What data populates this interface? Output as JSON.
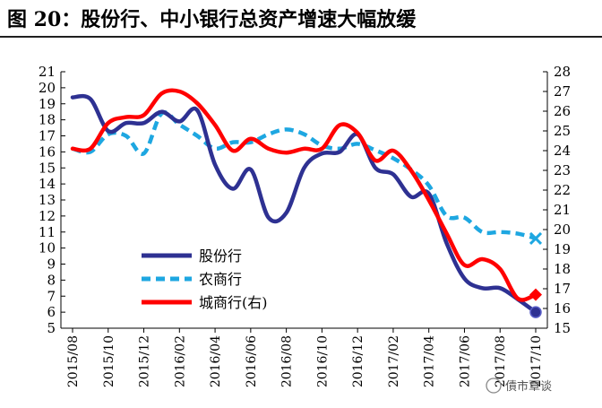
{
  "header": {
    "title": "图 20：股份行、中小银行总资产增速大幅放缓"
  },
  "watermark": "債市覃谈",
  "chart_data": {
    "type": "line",
    "title": "图 20：股份行、中小银行总资产增速大幅放缓",
    "x": [
      "2015/08",
      "2015/09",
      "2015/10",
      "2015/11",
      "2015/12",
      "2016/01",
      "2016/02",
      "2016/03",
      "2016/04",
      "2016/05",
      "2016/06",
      "2016/07",
      "2016/08",
      "2016/09",
      "2016/10",
      "2016/11",
      "2016/12",
      "2017/01",
      "2017/02",
      "2017/03",
      "2017/04",
      "2017/05",
      "2017/06",
      "2017/07",
      "2017/08",
      "2017/09",
      "2017/10"
    ],
    "xticks": [
      "2015/08",
      "2015/10",
      "2015/12",
      "2016/02",
      "2016/04",
      "2016/06",
      "2016/08",
      "2016/10",
      "2016/12",
      "2017/02",
      "2017/04",
      "2017/06",
      "2017/08",
      "2017/10"
    ],
    "y_left": {
      "ylim": [
        5,
        21
      ],
      "ticks": [
        5,
        6,
        7,
        8,
        9,
        10,
        11,
        12,
        13,
        14,
        15,
        16,
        17,
        18,
        19,
        20,
        21
      ]
    },
    "y_right": {
      "ylim": [
        15,
        28
      ],
      "ticks": [
        15,
        16,
        17,
        18,
        19,
        20,
        21,
        22,
        23,
        24,
        25,
        26,
        27,
        28
      ]
    },
    "legend_position": "lower-left",
    "series": [
      {
        "name": "股份行",
        "axis": "left",
        "color": "#2e3192",
        "end_marker": "circle",
        "values": [
          19.4,
          19.3,
          17.3,
          17.8,
          17.8,
          18.5,
          17.9,
          18.6,
          15.2,
          13.7,
          14.9,
          11.9,
          12.2,
          15.0,
          15.9,
          16.0,
          17.1,
          15.0,
          14.6,
          13.2,
          13.4,
          10.3,
          8.1,
          7.5,
          7.5,
          6.8,
          6.0
        ]
      },
      {
        "name": "农商行",
        "axis": "left",
        "color": "#1ea7e1",
        "end_marker": "x",
        "dashed": true,
        "values": [
          16.2,
          16.0,
          17.1,
          17.0,
          15.9,
          18.4,
          17.7,
          17.0,
          16.2,
          16.6,
          16.6,
          17.1,
          17.4,
          17.1,
          16.4,
          16.2,
          16.5,
          16.1,
          15.6,
          14.9,
          13.9,
          12.0,
          11.9,
          11.0,
          11.0,
          10.9,
          10.6
        ]
      },
      {
        "name": "城商行(右)",
        "axis": "right",
        "color": "#ff0000",
        "end_marker": "diamond",
        "values": [
          24.1,
          24.1,
          25.4,
          25.7,
          25.8,
          26.9,
          27.0,
          26.4,
          25.3,
          24.0,
          24.6,
          24.1,
          23.9,
          24.1,
          24.1,
          25.3,
          24.9,
          23.5,
          24.0,
          23.0,
          21.5,
          19.8,
          18.2,
          18.5,
          18.0,
          16.5,
          16.7
        ]
      }
    ]
  }
}
